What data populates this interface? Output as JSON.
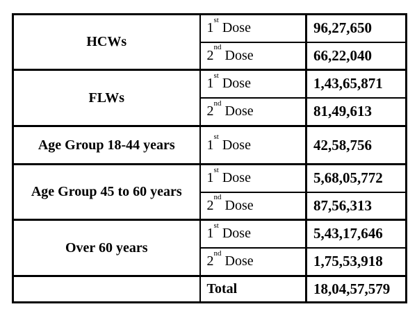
{
  "colors": {
    "background": "#ffffff",
    "border": "#000000",
    "text": "#000000"
  },
  "table": {
    "sections": [
      {
        "category": "HCWs",
        "rows": [
          {
            "num": "1",
            "sup": "st",
            "word": "Dose",
            "value": "96,27,650"
          },
          {
            "num": "2",
            "sup": "nd",
            "word": "Dose",
            "value": "66,22,040"
          }
        ]
      },
      {
        "category": "FLWs",
        "rows": [
          {
            "num": "1",
            "sup": "st",
            "word": "Dose",
            "value": "1,43,65,871"
          },
          {
            "num": "2",
            "sup": "nd",
            "word": "Dose",
            "value": "81,49,613"
          }
        ]
      },
      {
        "category": "Age Group 18-44 years",
        "rows": [
          {
            "num": "1",
            "sup": "st",
            "word": "Dose",
            "value": "42,58,756"
          }
        ]
      },
      {
        "category": "Age Group 45 to 60 years",
        "rows": [
          {
            "num": "1",
            "sup": "st",
            "word": "Dose",
            "value": "5,68,05,772"
          },
          {
            "num": "2",
            "sup": "nd",
            "word": "Dose",
            "value": "87,56,313"
          }
        ]
      },
      {
        "category": "Over 60 years",
        "rows": [
          {
            "num": "1",
            "sup": "st",
            "word": "Dose",
            "value": "5,43,17,646"
          },
          {
            "num": "2",
            "sup": "nd",
            "word": "Dose",
            "value": "1,75,53,918"
          }
        ]
      }
    ],
    "total": {
      "label": "Total",
      "value": "18,04,57,579"
    }
  },
  "chart_data": {
    "type": "table",
    "rows": [
      {
        "category": "HCWs",
        "dose": "1st Dose",
        "count": 9627650,
        "display": "96,27,650"
      },
      {
        "category": "HCWs",
        "dose": "2nd Dose",
        "count": 6622040,
        "display": "66,22,040"
      },
      {
        "category": "FLWs",
        "dose": "1st Dose",
        "count": 14365871,
        "display": "1,43,65,871"
      },
      {
        "category": "FLWs",
        "dose": "2nd Dose",
        "count": 8149613,
        "display": "81,49,613"
      },
      {
        "category": "Age Group 18-44 years",
        "dose": "1st Dose",
        "count": 4258756,
        "display": "42,58,756"
      },
      {
        "category": "Age Group 45 to 60 years",
        "dose": "1st Dose",
        "count": 56805772,
        "display": "5,68,05,772"
      },
      {
        "category": "Age Group 45 to 60 years",
        "dose": "2nd Dose",
        "count": 8756313,
        "display": "87,56,313"
      },
      {
        "category": "Over 60 years",
        "dose": "1st Dose",
        "count": 54317646,
        "display": "5,43,17,646"
      },
      {
        "category": "Over 60 years",
        "dose": "2nd Dose",
        "count": 17553918,
        "display": "1,75,53,918"
      }
    ],
    "total": {
      "label": "Total",
      "count": 180457579,
      "display": "18,04,57,579"
    }
  }
}
